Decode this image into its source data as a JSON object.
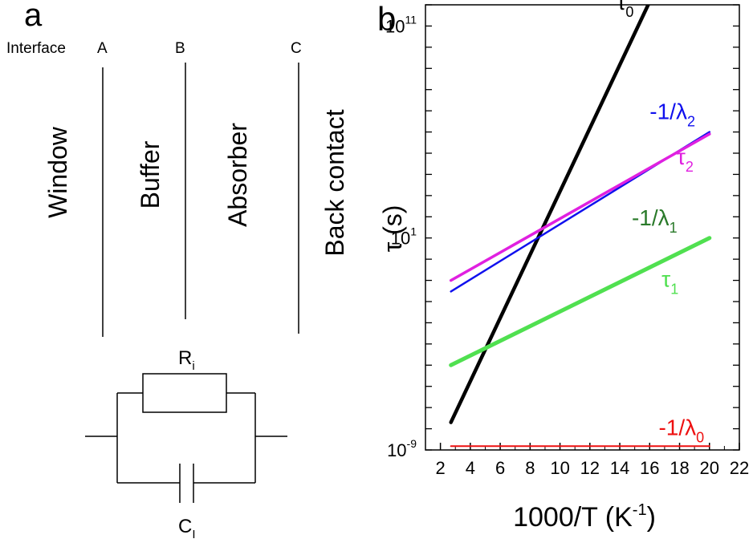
{
  "panel_a": {
    "label": "a",
    "interface_label": "Interface",
    "interfaces": [
      "A",
      "B",
      "C"
    ],
    "layers": [
      "Window",
      "Buffer",
      "Absorber",
      "Back contact"
    ],
    "resistor": {
      "symbol": "R",
      "subscript": "i"
    },
    "capacitor": {
      "symbol": "C",
      "subscript": "I"
    }
  },
  "chart_data": {
    "type": "line",
    "panel_label": "b",
    "xlabel": "1000/T (K",
    "xlabel_sup": "-1",
    "xlabel_close": ")",
    "ylabel": "τ (s)",
    "xlim": [
      1,
      22
    ],
    "ylim_log10": [
      -9,
      12
    ],
    "y_scale": "log",
    "x_ticks": [
      2,
      4,
      6,
      8,
      10,
      12,
      14,
      16,
      18,
      20,
      22
    ],
    "y_ticks": [
      {
        "base": "10",
        "exp": "-9",
        "value": 1e-09
      },
      {
        "base": "10",
        "exp": "1",
        "value": 10
      },
      {
        "base": "10",
        "exp": "11",
        "value": 100000000000.0
      }
    ],
    "grid": false,
    "series": [
      {
        "name": "τ",
        "sub": "0",
        "color": "#000000",
        "width": 4.5,
        "x": [
          2.7,
          15.9
        ],
        "y": [
          2e-08,
          1000000000000.0
        ]
      },
      {
        "name": "-1/λ",
        "sub": "2",
        "color": "#1010ee",
        "width": 2.5,
        "x": [
          2.7,
          20
        ],
        "y": [
          0.03,
          1000000.0
        ]
      },
      {
        "name": "τ",
        "sub": "2",
        "color": "#e020e0",
        "width": 3.5,
        "x": [
          2.7,
          20
        ],
        "y": [
          0.1,
          800000.0
        ]
      },
      {
        "name": "-1/λ",
        "sub": "1",
        "color": "#2a7a2a",
        "width": 2.5,
        "x": [
          2.7,
          20
        ],
        "y": [
          1e-05,
          10
        ]
      },
      {
        "name": "τ",
        "sub": "1",
        "color": "#50e050",
        "width": 5,
        "x": [
          2.7,
          20
        ],
        "y": [
          1e-05,
          10
        ]
      },
      {
        "name": "-1/λ",
        "sub": "0",
        "color": "#ee1010",
        "width": 2,
        "x": [
          2.7,
          20
        ],
        "y": [
          1.5e-09,
          1.5e-09
        ]
      }
    ],
    "annotations": [
      {
        "text": "τ",
        "sub": "0",
        "color": "#000000",
        "x": 13.8,
        "y": 600000000000.0
      },
      {
        "text": "-1/λ",
        "sub": "2",
        "color": "#1010ee",
        "x": 16.0,
        "y": 4000000.0
      },
      {
        "text": "τ",
        "sub": "2",
        "color": "#e020e0",
        "x": 17.8,
        "y": 30000.0
      },
      {
        "text": "-1/λ",
        "sub": "1",
        "color": "#2a7a2a",
        "x": 14.8,
        "y": 40
      },
      {
        "text": "τ",
        "sub": "1",
        "color": "#50e050",
        "x": 16.8,
        "y": 0.05
      },
      {
        "text": "-1/λ",
        "sub": "0",
        "color": "#ee1010",
        "x": 16.6,
        "y": 5e-09
      }
    ]
  }
}
